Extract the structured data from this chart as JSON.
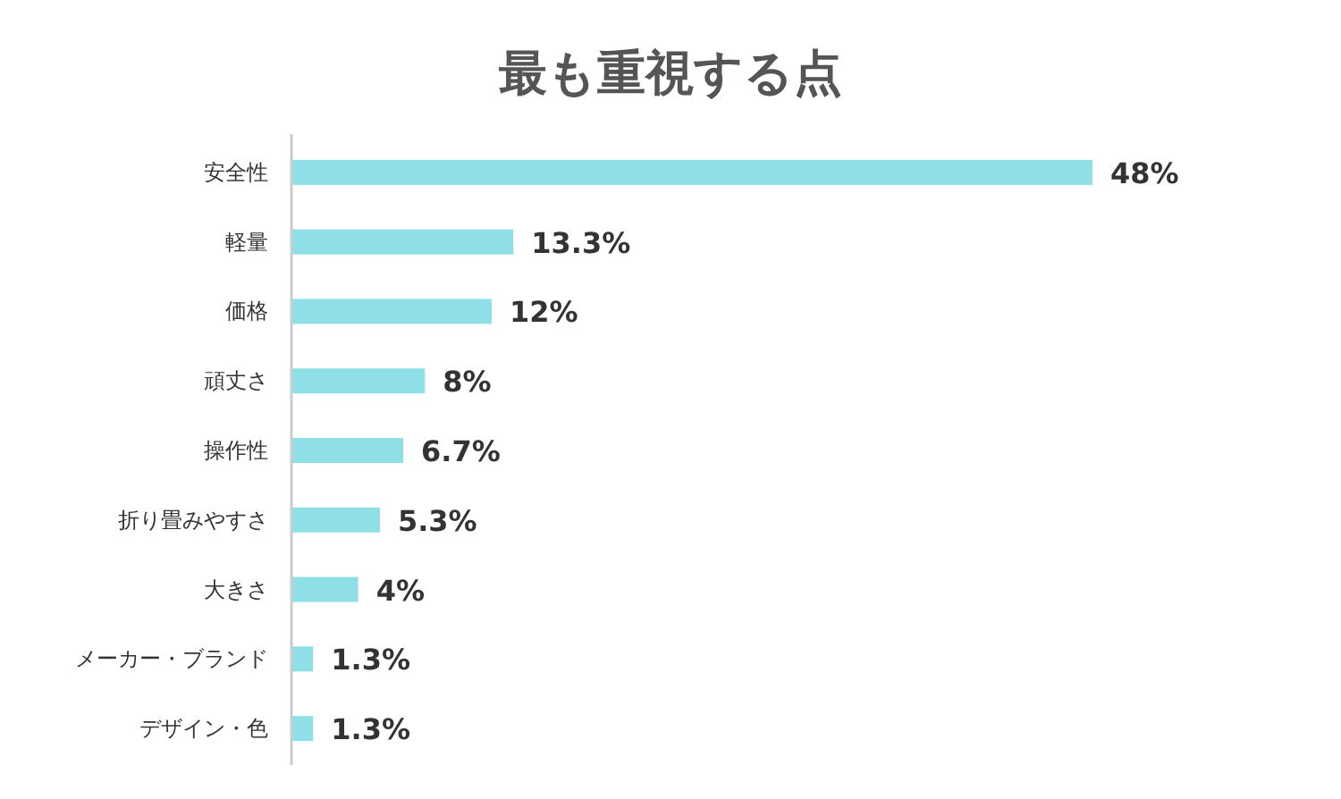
{
  "chart_data": {
    "type": "bar",
    "orientation": "horizontal",
    "title": "最も重視する点",
    "categories": [
      "安全性",
      "軽量",
      "価格",
      "頑丈さ",
      "操作性",
      "折り畳みやすさ",
      "大きさ",
      "メーカー・ブランド",
      "デザイン・色"
    ],
    "values": [
      48,
      13.3,
      12,
      8,
      6.7,
      5.3,
      4,
      1.3,
      1.3
    ],
    "value_labels": [
      "48%",
      "13.3%",
      "12%",
      "8%",
      "6.7%",
      "5.3%",
      "4%",
      "1.3%",
      "1.3%"
    ],
    "color": "#8fdfe6"
  }
}
